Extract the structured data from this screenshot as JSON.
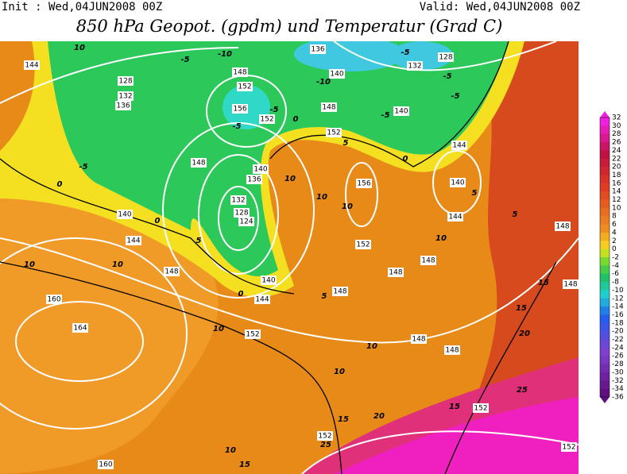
{
  "header": {
    "init": "Init : Wed,04JUN2008 00Z",
    "valid": "Valid: Wed,04JUN2008 00Z",
    "title": "850 hPa Geopot. (gpdm) und Temperatur (Grad C)"
  },
  "colorbar": {
    "labels": [
      "32",
      "30",
      "28",
      "26",
      "24",
      "22",
      "20",
      "18",
      "16",
      "14",
      "12",
      "10",
      "8",
      "6",
      "4",
      "2",
      "0",
      "-2",
      "-4",
      "-6",
      "-8",
      "-10",
      "-12",
      "-14",
      "-16",
      "-18",
      "-20",
      "-22",
      "-24",
      "-26",
      "-28",
      "-30",
      "-32",
      "-34",
      "-36"
    ]
  },
  "map": {
    "geopotential_labels": [
      "144",
      "128",
      "132",
      "136",
      "148",
      "152",
      "156",
      "152",
      "140",
      "136",
      "132",
      "128",
      "140",
      "148",
      "152",
      "144",
      "140",
      "156",
      "144",
      "148",
      "152",
      "148",
      "148",
      "148",
      "140",
      "144",
      "148",
      "144",
      "140",
      "140",
      "136",
      "132",
      "128",
      "124",
      "148",
      "160",
      "164",
      "152",
      "148",
      "148",
      "152",
      "152",
      "160",
      "152",
      "148"
    ],
    "temperature_labels": [
      "10",
      "-10",
      "-5",
      "-10",
      "-5",
      "-5",
      "0",
      "-5",
      "-5",
      "0",
      "5",
      "5",
      "10",
      "10",
      "10",
      "10",
      "5",
      "0",
      "5",
      "0",
      "5",
      "10",
      "10",
      "10",
      "10",
      "15",
      "15",
      "20",
      "25",
      "15",
      "15",
      "20",
      "10",
      "15",
      "25",
      "-5",
      "0",
      "10",
      "-5",
      "-5"
    ]
  }
}
